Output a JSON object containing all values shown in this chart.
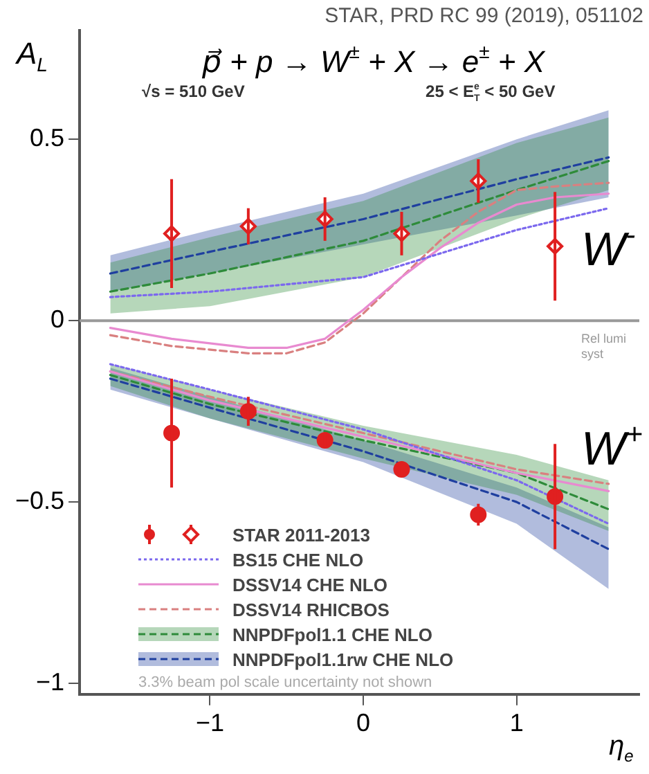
{
  "chart_data": {
    "type": "line",
    "title": "p⃗ + p → W$^{±}$ + X → e$^{±}$ + X",
    "xlabel": "η$_{e}$",
    "ylabel": "A$_{L}$",
    "annotations": [
      "STAR, PRD RC 99 (2019), 051102",
      "√s = 510 GeV",
      "25 < E$_{T}$$^{e}$ < 50 GeV",
      "3.3% beam pol scale uncertainty not shown",
      "W$^{-}$",
      "W$^{+}$",
      "Rel lumi syst"
    ],
    "xlim": [
      -1.85,
      1.8
    ],
    "ylim": [
      -1.03,
      0.8
    ],
    "xticks": [
      {
        "value": -1,
        "label": "−1"
      },
      0,
      1
    ],
    "yticks": [
      {
        "value": -1,
        "label": "−1"
      },
      {
        "value": -0.5,
        "label": "−0.5"
      },
      0,
      0.5
    ],
    "grid": false,
    "legend": "bottom left",
    "ref_lines": [
      {
        "axis": "y",
        "value": 0,
        "color": "#999999"
      }
    ],
    "series": [
      {
        "name": "STAR 2011-2013",
        "type": "scatter",
        "marker": "circle",
        "color": "#e02020",
        "x": [
          -1.25,
          -0.75,
          -0.25,
          0.25,
          0.75,
          1.25
        ],
        "values": [
          -0.31,
          -0.25,
          -0.33,
          -0.41,
          -0.535,
          -0.485
        ],
        "errors": [
          0.15,
          0.04,
          0.02,
          0.02,
          0.03,
          0.145
        ]
      },
      {
        "type": "scatter",
        "marker": "diamond",
        "color": "#e02020",
        "x": [
          -1.25,
          -0.75,
          -0.25,
          0.25,
          0.75,
          1.25
        ],
        "values": [
          0.24,
          0.26,
          0.28,
          0.24,
          0.385,
          0.205
        ],
        "errors": [
          0.15,
          0.05,
          0.06,
          0.06,
          0.06,
          0.15
        ]
      },
      {
        "name": "BS15 CHE NLO",
        "type": "line",
        "line_style": "dotted",
        "color": "#7b68ee",
        "x": [
          -1.65,
          -1,
          0,
          1,
          1.6
        ],
        "values": [
          0.065,
          0.08,
          0.12,
          0.25,
          0.31
        ]
      },
      {
        "type": "line",
        "line_style": "dotted",
        "color": "#7b68ee",
        "x": [
          -1.65,
          -1,
          0,
          1,
          1.6
        ],
        "values": [
          -0.12,
          -0.19,
          -0.3,
          -0.44,
          -0.56
        ]
      },
      {
        "name": "DSSV14 CHE NLO",
        "type": "line",
        "line_style": "solid",
        "color": "#e88ad0",
        "x": [
          -1.65,
          -1.25,
          -0.75,
          -0.5,
          -0.25,
          0,
          0.25,
          0.5,
          0.75,
          1,
          1.25,
          1.6
        ],
        "values": [
          -0.02,
          -0.05,
          -0.075,
          -0.075,
          -0.05,
          0.03,
          0.12,
          0.2,
          0.27,
          0.32,
          0.34,
          0.35
        ]
      },
      {
        "type": "line",
        "line_style": "solid",
        "color": "#e88ad0",
        "x": [
          -1.65,
          -1,
          0,
          1,
          1.6
        ],
        "values": [
          -0.14,
          -0.22,
          -0.32,
          -0.42,
          -0.47
        ]
      },
      {
        "name": "DSSV14 RHICBOS",
        "type": "line",
        "line_style": "dashed",
        "color": "#d98080",
        "x": [
          -1.65,
          -1.25,
          -0.75,
          -0.5,
          -0.25,
          0,
          0.25,
          0.5,
          0.75,
          1,
          1.25,
          1.6
        ],
        "values": [
          -0.04,
          -0.07,
          -0.09,
          -0.09,
          -0.06,
          0.02,
          0.12,
          0.22,
          0.3,
          0.36,
          0.37,
          0.38
        ]
      },
      {
        "type": "line",
        "line_style": "dashed",
        "color": "#d98080",
        "x": [
          -1.65,
          -1,
          0,
          1,
          1.6
        ],
        "values": [
          -0.14,
          -0.21,
          -0.31,
          -0.41,
          -0.45
        ]
      },
      {
        "name": "NNPDFpol1.1 CHE NLO",
        "type": "line",
        "line_style": "dashed",
        "color": "#2e8b3a",
        "x": [
          -1.65,
          -1,
          0,
          1,
          1.6
        ],
        "values": [
          0.08,
          0.13,
          0.22,
          0.36,
          0.44
        ],
        "upper": [
          0.16,
          0.23,
          0.33,
          0.49,
          0.56
        ],
        "lower": [
          0.02,
          0.04,
          0.12,
          0.28,
          0.36
        ]
      },
      {
        "type": "line",
        "line_style": "dashed",
        "color": "#2e8b3a",
        "x": [
          -1.65,
          -1,
          0,
          1,
          1.6
        ],
        "values": [
          -0.15,
          -0.23,
          -0.33,
          -0.42,
          -0.52
        ],
        "upper": [
          -0.12,
          -0.19,
          -0.29,
          -0.37,
          -0.44
        ],
        "lower": [
          -0.18,
          -0.27,
          -0.38,
          -0.48,
          -0.58
        ]
      },
      {
        "name": "NNPDFpol1.1rw CHE NLO",
        "type": "line",
        "line_style": "dashed",
        "color": "#1f3f9f",
        "x": [
          -1.65,
          -1,
          0,
          1,
          1.6
        ],
        "values": [
          0.13,
          0.19,
          0.28,
          0.39,
          0.45
        ],
        "upper": [
          0.18,
          0.25,
          0.35,
          0.5,
          0.58
        ],
        "lower": [
          0.08,
          0.13,
          0.21,
          0.29,
          0.34
        ]
      },
      {
        "type": "line",
        "line_style": "dashed",
        "color": "#1f3f9f",
        "x": [
          -1.65,
          -1,
          0,
          1,
          1.6
        ],
        "values": [
          -0.16,
          -0.24,
          -0.36,
          -0.5,
          -0.63
        ],
        "upper": [
          -0.13,
          -0.21,
          -0.33,
          -0.46,
          -0.57
        ],
        "lower": [
          -0.19,
          -0.27,
          -0.39,
          -0.56,
          -0.74
        ]
      }
    ]
  }
}
